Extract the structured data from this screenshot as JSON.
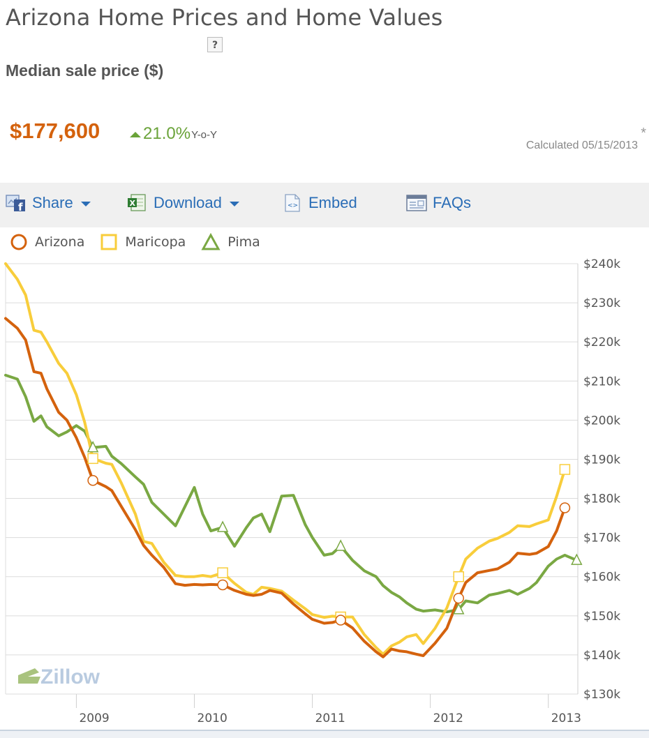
{
  "page": {
    "title": "Arizona Home Prices and Home Values",
    "help_label": "?",
    "metric_label": "Median sale price ($)",
    "price": "$177,600",
    "change_pct": "21.0%",
    "change_suffix": "Y-o-Y",
    "asterisk": "*",
    "calculated": "Calculated 05/15/2013"
  },
  "toolbar": {
    "share": "Share",
    "download": "Download",
    "embed": "Embed",
    "faqs": "FAQs"
  },
  "colors": {
    "arizona": "#d4620d",
    "maricopa": "#f8cd3b",
    "pima": "#7aa843",
    "link": "#2a6db6"
  },
  "watermark": "Zillow",
  "chart_data": {
    "type": "line",
    "grid": true,
    "legend_position": "top-left",
    "ylim": [
      130000,
      240000
    ],
    "x_range": [
      2008.4,
      2013.25
    ],
    "y_tick_labels": [
      "$130k",
      "$140k",
      "$150k",
      "$160k",
      "$170k",
      "$180k",
      "$190k",
      "$200k",
      "$210k",
      "$220k",
      "$230k",
      "$240k"
    ],
    "x_tick_labels": [
      "2009",
      "2010",
      "2011",
      "2012",
      "2013"
    ],
    "x_ticks": [
      2009,
      2010,
      2011,
      2012,
      2013
    ],
    "series": [
      {
        "name": "Arizona",
        "color": "#d4620d",
        "marker": "circle",
        "points": [
          [
            2008.4,
            226000
          ],
          [
            2008.5,
            223500
          ],
          [
            2008.57,
            220500
          ],
          [
            2008.64,
            212400
          ],
          [
            2008.7,
            212000
          ],
          [
            2008.75,
            208000
          ],
          [
            2008.85,
            202000
          ],
          [
            2008.92,
            200000
          ],
          [
            2009.0,
            195500
          ],
          [
            2009.07,
            190500
          ],
          [
            2009.14,
            184600
          ],
          [
            2009.25,
            183000
          ],
          [
            2009.3,
            182000
          ],
          [
            2009.38,
            178000
          ],
          [
            2009.5,
            172000
          ],
          [
            2009.57,
            168000
          ],
          [
            2009.64,
            165500
          ],
          [
            2009.74,
            162400
          ],
          [
            2009.84,
            158200
          ],
          [
            2009.92,
            157800
          ],
          [
            2010.0,
            158000
          ],
          [
            2010.07,
            157900
          ],
          [
            2010.14,
            158000
          ],
          [
            2010.24,
            157900
          ],
          [
            2010.34,
            156500
          ],
          [
            2010.44,
            155500
          ],
          [
            2010.5,
            155200
          ],
          [
            2010.57,
            155500
          ],
          [
            2010.64,
            156500
          ],
          [
            2010.74,
            155800
          ],
          [
            2010.84,
            153000
          ],
          [
            2010.94,
            150500
          ],
          [
            2011.0,
            149100
          ],
          [
            2011.1,
            148100
          ],
          [
            2011.17,
            148300
          ],
          [
            2011.24,
            148900
          ],
          [
            2011.34,
            146900
          ],
          [
            2011.44,
            143500
          ],
          [
            2011.54,
            140800
          ],
          [
            2011.6,
            139500
          ],
          [
            2011.67,
            141500
          ],
          [
            2011.74,
            141000
          ],
          [
            2011.8,
            140800
          ],
          [
            2011.88,
            140200
          ],
          [
            2011.94,
            139800
          ],
          [
            2012.04,
            143000
          ],
          [
            2012.14,
            146800
          ],
          [
            2012.24,
            154500
          ],
          [
            2012.3,
            158500
          ],
          [
            2012.4,
            161000
          ],
          [
            2012.5,
            161600
          ],
          [
            2012.57,
            162000
          ],
          [
            2012.67,
            163700
          ],
          [
            2012.74,
            166000
          ],
          [
            2012.84,
            165700
          ],
          [
            2012.9,
            166000
          ],
          [
            2013.0,
            167700
          ],
          [
            2013.07,
            171700
          ],
          [
            2013.14,
            177600
          ]
        ]
      },
      {
        "name": "Maricopa",
        "color": "#f8cd3b",
        "marker": "square",
        "points": [
          [
            2008.4,
            240000
          ],
          [
            2008.5,
            236000
          ],
          [
            2008.57,
            232000
          ],
          [
            2008.64,
            223000
          ],
          [
            2008.7,
            222500
          ],
          [
            2008.75,
            220000
          ],
          [
            2008.85,
            214500
          ],
          [
            2008.92,
            212000
          ],
          [
            2009.0,
            206500
          ],
          [
            2009.07,
            199500
          ],
          [
            2009.14,
            190200
          ],
          [
            2009.25,
            189000
          ],
          [
            2009.3,
            188700
          ],
          [
            2009.38,
            184000
          ],
          [
            2009.5,
            176000
          ],
          [
            2009.57,
            169000
          ],
          [
            2009.64,
            168500
          ],
          [
            2009.74,
            163700
          ],
          [
            2009.84,
            160300
          ],
          [
            2009.92,
            160000
          ],
          [
            2010.0,
            160000
          ],
          [
            2010.07,
            160300
          ],
          [
            2010.14,
            160000
          ],
          [
            2010.24,
            161000
          ],
          [
            2010.34,
            158300
          ],
          [
            2010.44,
            156000
          ],
          [
            2010.5,
            155500
          ],
          [
            2010.57,
            157300
          ],
          [
            2010.64,
            157000
          ],
          [
            2010.74,
            156300
          ],
          [
            2010.84,
            154000
          ],
          [
            2010.94,
            151800
          ],
          [
            2011.0,
            150300
          ],
          [
            2011.1,
            149600
          ],
          [
            2011.17,
            149900
          ],
          [
            2011.24,
            149700
          ],
          [
            2011.34,
            149700
          ],
          [
            2011.44,
            145200
          ],
          [
            2011.54,
            141900
          ],
          [
            2011.6,
            140200
          ],
          [
            2011.67,
            142300
          ],
          [
            2011.74,
            143300
          ],
          [
            2011.8,
            144600
          ],
          [
            2011.88,
            145200
          ],
          [
            2011.94,
            142900
          ],
          [
            2012.04,
            146800
          ],
          [
            2012.14,
            152000
          ],
          [
            2012.24,
            160000
          ],
          [
            2012.3,
            164500
          ],
          [
            2012.4,
            167300
          ],
          [
            2012.5,
            169100
          ],
          [
            2012.57,
            169800
          ],
          [
            2012.67,
            171300
          ],
          [
            2012.74,
            173000
          ],
          [
            2012.84,
            172800
          ],
          [
            2012.9,
            173500
          ],
          [
            2013.0,
            174500
          ],
          [
            2013.07,
            180500
          ],
          [
            2013.14,
            187400
          ]
        ]
      },
      {
        "name": "Pima",
        "color": "#7aa843",
        "marker": "triangle",
        "points": [
          [
            2008.4,
            211500
          ],
          [
            2008.5,
            210500
          ],
          [
            2008.57,
            206000
          ],
          [
            2008.64,
            199700
          ],
          [
            2008.7,
            201100
          ],
          [
            2008.75,
            198300
          ],
          [
            2008.85,
            196000
          ],
          [
            2008.92,
            197000
          ],
          [
            2009.0,
            198600
          ],
          [
            2009.07,
            197200
          ],
          [
            2009.14,
            193000
          ],
          [
            2009.25,
            193300
          ],
          [
            2009.3,
            190800
          ],
          [
            2009.38,
            188900
          ],
          [
            2009.5,
            185500
          ],
          [
            2009.57,
            183600
          ],
          [
            2009.64,
            179000
          ],
          [
            2009.74,
            176000
          ],
          [
            2009.84,
            173000
          ],
          [
            2010.0,
            182800
          ],
          [
            2010.07,
            176000
          ],
          [
            2010.14,
            171700
          ],
          [
            2010.24,
            172600
          ],
          [
            2010.34,
            167800
          ],
          [
            2010.44,
            172500
          ],
          [
            2010.5,
            175000
          ],
          [
            2010.57,
            176000
          ],
          [
            2010.64,
            171500
          ],
          [
            2010.74,
            180600
          ],
          [
            2010.84,
            180800
          ],
          [
            2010.94,
            173300
          ],
          [
            2011.0,
            170000
          ],
          [
            2011.1,
            165500
          ],
          [
            2011.17,
            165900
          ],
          [
            2011.24,
            167800
          ],
          [
            2011.34,
            164200
          ],
          [
            2011.44,
            161500
          ],
          [
            2011.54,
            160000
          ],
          [
            2011.6,
            157700
          ],
          [
            2011.67,
            156000
          ],
          [
            2011.74,
            154800
          ],
          [
            2011.8,
            153300
          ],
          [
            2011.88,
            151700
          ],
          [
            2011.94,
            151200
          ],
          [
            2012.04,
            151500
          ],
          [
            2012.14,
            151000
          ],
          [
            2012.24,
            151600
          ],
          [
            2012.3,
            153800
          ],
          [
            2012.4,
            153300
          ],
          [
            2012.5,
            155300
          ],
          [
            2012.57,
            155700
          ],
          [
            2012.67,
            156500
          ],
          [
            2012.74,
            155500
          ],
          [
            2012.84,
            157000
          ],
          [
            2012.9,
            158500
          ],
          [
            2013.0,
            162700
          ],
          [
            2013.07,
            164500
          ],
          [
            2013.14,
            165500
          ],
          [
            2013.24,
            164200
          ]
        ]
      }
    ],
    "markers_at": [
      2009.14,
      2010.24,
      2011.24,
      2012.24,
      2013.14
    ]
  }
}
